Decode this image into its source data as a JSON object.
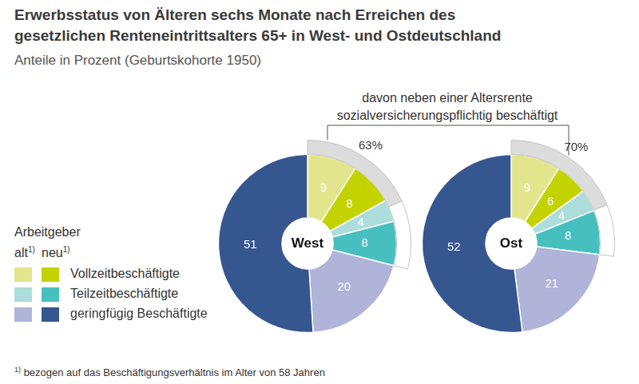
{
  "title": [
    "Erwerbsstatus von Älteren sechs Monate nach Erreichen des",
    "gesetzlichen Renteneintrittsalters 65+ in West- und Ostdeutschland"
  ],
  "subtitle": "Anteile in Prozent (Geburtskohorte 1950)",
  "annotation": [
    "davon neben einer Altersrente",
    "sozialversicherungspflichtig beschäftigt"
  ],
  "legend_title": "Arbeitgeber",
  "employer_labels": [
    "alt",
    "neu"
  ],
  "footnote_mark": "1)",
  "footnote": "bezogen auf das Beschäftigungsverhältnis im Alter von 58 Jahren",
  "chart_data": [
    {
      "type": "doughnut",
      "center_label": "West",
      "categories": [
        "Vollzeitbeschäftigte",
        "Vollzeitbeschäftigte",
        "Teilzeitbeschäftigte",
        "Teilzeitbeschäftigte",
        "geringfügig Beschäftigte",
        "geringfügig Beschäftigte"
      ],
      "employer": [
        "alt",
        "neu",
        "alt",
        "neu",
        "alt",
        "neu"
      ],
      "values": [
        9,
        8,
        4,
        8,
        20,
        51
      ],
      "colors": [
        "#e2e58c",
        "#c3d300",
        "#acdddc",
        "#48bfbf",
        "#afb4d8",
        "#36568f"
      ],
      "data_labels": true,
      "insured": [
        true,
        true,
        true,
        true,
        false,
        false
      ],
      "insured_employed_share": 63,
      "insured_employed_share_label": "63%"
    },
    {
      "type": "doughnut",
      "center_label": "Ost",
      "categories": [
        "Vollzeitbeschäftigte",
        "Vollzeitbeschäftigte",
        "Teilzeitbeschäftigte",
        "Teilzeitbeschäftigte",
        "geringfügig Beschäftigte",
        "geringfügig Beschäftigte"
      ],
      "employer": [
        "alt",
        "neu",
        "alt",
        "neu",
        "alt",
        "neu"
      ],
      "values": [
        9,
        6,
        4,
        8,
        21,
        52
      ],
      "colors": [
        "#e2e58c",
        "#c3d300",
        "#acdddc",
        "#48bfbf",
        "#afb4d8",
        "#36568f"
      ],
      "data_labels": true,
      "insured": [
        true,
        true,
        true,
        true,
        false,
        false
      ],
      "insured_employed_share": 70,
      "insured_employed_share_label": "70%"
    }
  ]
}
